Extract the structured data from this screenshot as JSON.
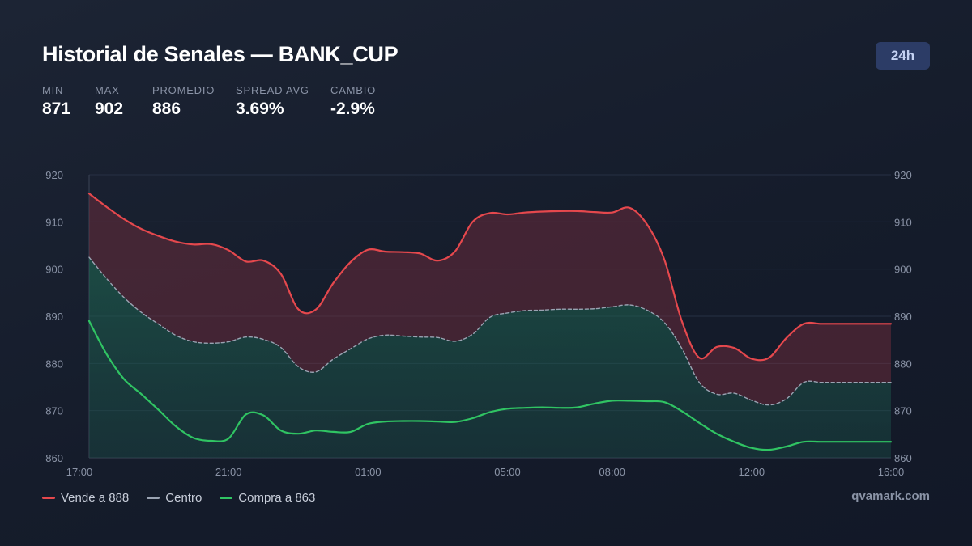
{
  "header": {
    "title": "Historial de Senales — BANK_CUP",
    "range_badge": "24h"
  },
  "stats": [
    {
      "label": "MIN",
      "value": "871"
    },
    {
      "label": "MAX",
      "value": "902"
    },
    {
      "label": "PROMEDIO",
      "value": "886"
    },
    {
      "label": "SPREAD AVG",
      "value": "3.69%"
    },
    {
      "label": "CAMBIO",
      "value": "-2.9%"
    }
  ],
  "legend": [
    {
      "label": "Vende a 888",
      "color": "#e5484d"
    },
    {
      "label": "Centro",
      "color": "#9aa3b2"
    },
    {
      "label": "Compra a 863",
      "color": "#30c463"
    }
  ],
  "brand": "qvamark.com",
  "chart_data": {
    "type": "line",
    "ylim": [
      860,
      920
    ],
    "y_ticks": [
      "860",
      "870",
      "880",
      "890",
      "900",
      "910",
      "920"
    ],
    "x_ticks": [
      {
        "label": "17:00",
        "hour": 0
      },
      {
        "label": "21:00",
        "hour": 4
      },
      {
        "label": "01:00",
        "hour": 8
      },
      {
        "label": "05:00",
        "hour": 12
      },
      {
        "label": "08:00",
        "hour": 15
      },
      {
        "label": "12:00",
        "hour": 19
      },
      {
        "label": "16:00",
        "hour": 23
      }
    ],
    "x_hours": [
      0,
      0.5,
      1,
      1.5,
      2,
      2.5,
      3,
      3.5,
      4,
      4.5,
      5,
      5.5,
      6,
      6.5,
      7,
      7.5,
      8,
      8.5,
      9,
      9.5,
      10,
      10.5,
      11,
      11.5,
      12,
      12.5,
      13,
      13.5,
      14,
      14.5,
      15,
      15.5,
      16,
      16.5,
      17,
      17.5,
      18,
      18.5,
      19,
      19.5,
      20,
      20.5,
      21,
      21.5,
      22,
      22.5,
      23
    ],
    "series": [
      {
        "name": "Vende a 888",
        "color": "#e5484d",
        "dashed": false,
        "values": [
          916,
          913.2,
          910.6,
          908.5,
          907,
          905.8,
          905.2,
          905.3,
          904,
          901.6,
          901.8,
          899,
          891.5,
          891.4,
          897,
          901.5,
          904.1,
          903.7,
          903.6,
          903.3,
          901.8,
          903.8,
          910,
          911.9,
          911.6,
          912,
          912.2,
          912.3,
          912.3,
          912.1,
          912,
          913,
          909.5,
          902,
          889,
          881.2,
          883.5,
          883.3,
          881,
          881.2,
          885.4,
          888.4,
          888.4,
          888.4,
          888.4,
          888.4,
          888.4
        ]
      },
      {
        "name": "Centro",
        "color": "#9aa3b2",
        "dashed": true,
        "values": [
          902.5,
          898,
          894,
          890.8,
          888.3,
          885.9,
          884.6,
          884.3,
          884.6,
          885.6,
          885.1,
          883.4,
          879.3,
          878.2,
          880.9,
          883.1,
          885.2,
          886,
          885.8,
          885.6,
          885.5,
          884.7,
          886.2,
          889.8,
          890.7,
          891.2,
          891.3,
          891.5,
          891.5,
          891.6,
          892,
          892.4,
          891.3,
          888.7,
          883.2,
          876,
          873.5,
          873.7,
          872.2,
          871.2,
          872.5,
          876,
          876,
          876,
          876,
          876,
          876
        ]
      },
      {
        "name": "Compra a 863",
        "color": "#30c463",
        "dashed": false,
        "values": [
          889,
          882,
          876.7,
          873.5,
          870.1,
          866.6,
          864.2,
          863.6,
          864.1,
          869.2,
          869,
          865.8,
          865.1,
          865.8,
          865.5,
          865.5,
          867.2,
          867.7,
          867.8,
          867.8,
          867.7,
          867.6,
          868.4,
          869.7,
          870.4,
          870.6,
          870.7,
          870.6,
          870.7,
          871.5,
          872.1,
          872.1,
          872,
          871.8,
          869.9,
          867.4,
          865.1,
          863.4,
          862.1,
          861.7,
          862.4,
          863.4,
          863.4,
          863.4,
          863.4,
          863.4,
          863.4
        ]
      }
    ]
  }
}
